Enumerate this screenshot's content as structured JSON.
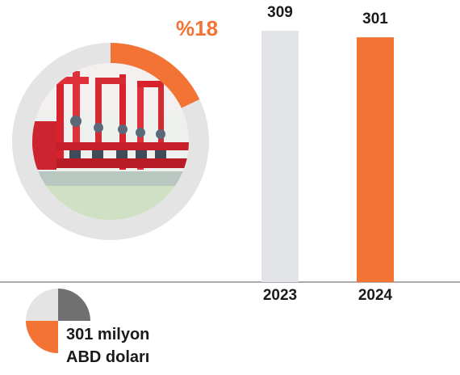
{
  "chart_data": [
    {
      "type": "pie",
      "label": "%18",
      "values": [
        {
          "label": "highlight",
          "value": 18,
          "color": "#f37335"
        },
        {
          "label": "rest",
          "value": 82,
          "color": "#e4e4e4"
        }
      ]
    },
    {
      "type": "bar",
      "categories": [
        "2023",
        "2024"
      ],
      "values": [
        309,
        301
      ],
      "colors": [
        "#e1e3e6",
        "#f37335"
      ],
      "ylim": [
        0,
        325
      ]
    }
  ],
  "legend": {
    "line1": "301 milyon",
    "line2": "ABD doları",
    "colors": {
      "gray": "#707070",
      "orange": "#f37335",
      "light": "#e4e4e4"
    }
  }
}
